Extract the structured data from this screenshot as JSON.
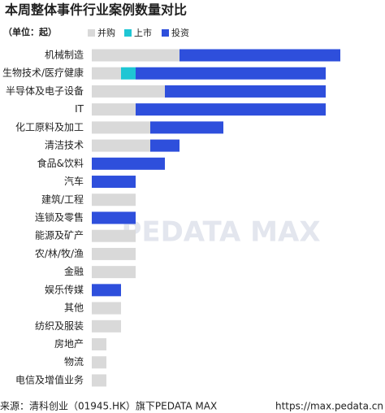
{
  "chart_data": {
    "type": "stacked-barh",
    "title": "本周整体事件行业案例数量对比",
    "subtitle": "（单位：起）",
    "categories": [
      "机械制造",
      "生物技术/医疗健康",
      "半导体及电子设备",
      "IT",
      "化工原料及加工",
      "清洁技术",
      "食品&饮料",
      "汽车",
      "建筑/工程",
      "连锁及零售",
      "能源及矿产",
      "农/林/牧/渔",
      "金融",
      "娱乐传媒",
      "其他",
      "纺织及服装",
      "房地产",
      "物流",
      "电信及增值业务"
    ],
    "series": [
      {
        "name": "并购",
        "color": "#d9d9d9",
        "values": [
          6,
          2,
          5,
          3,
          4,
          4,
          0,
          0,
          3,
          0,
          3,
          3,
          3,
          0,
          2,
          2,
          1,
          1,
          1
        ]
      },
      {
        "name": "上市",
        "color": "#1fc6d4",
        "values": [
          0,
          1,
          0,
          0,
          0,
          0,
          0,
          0,
          0,
          0,
          0,
          0,
          0,
          0,
          0,
          0,
          0,
          0,
          0
        ]
      },
      {
        "name": "投资",
        "color": "#2e4fdc",
        "values": [
          11,
          13,
          11,
          13,
          5,
          2,
          5,
          3,
          0,
          3,
          0,
          0,
          0,
          2,
          0,
          0,
          0,
          0,
          0
        ]
      }
    ],
    "watermark": "PEDATA MAX",
    "source": "来源：清科创业（01945.HK）旗下PEDATA MAX",
    "url": "https://max.pedata.cn"
  }
}
